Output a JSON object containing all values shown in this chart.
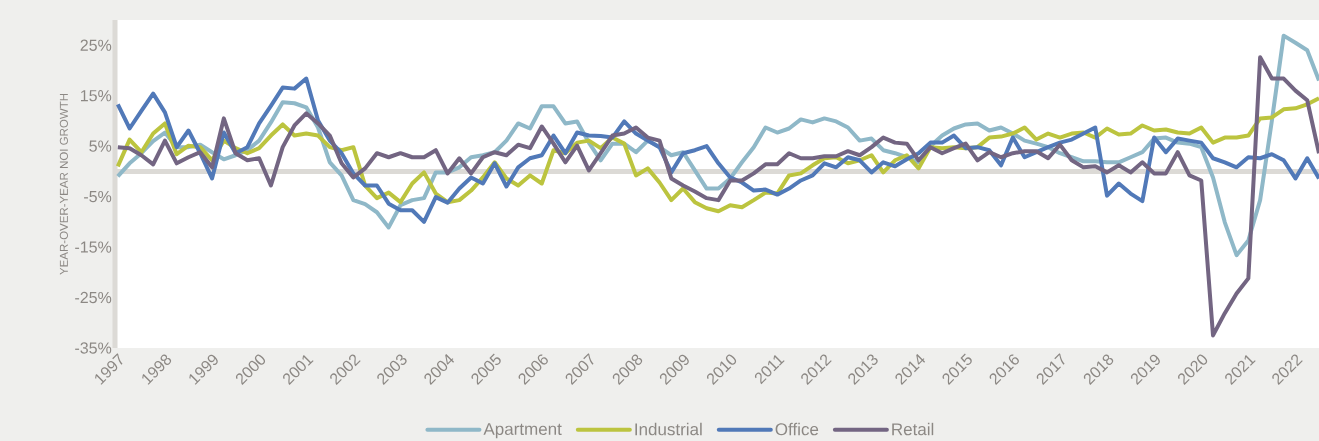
{
  "chart_data": {
    "type": "line",
    "ylabel": "YEAR-OVER-YEAR NOI GROWTH",
    "x": [
      1997,
      1997.25,
      1997.5,
      1997.75,
      1998,
      1998.25,
      1998.5,
      1998.75,
      1999,
      1999.25,
      1999.5,
      1999.75,
      2000,
      2000.25,
      2000.5,
      2000.75,
      2001,
      2001.25,
      2001.5,
      2001.75,
      2002,
      2002.25,
      2002.5,
      2002.75,
      2003,
      2003.25,
      2003.5,
      2003.75,
      2004,
      2004.25,
      2004.5,
      2004.75,
      2005,
      2005.25,
      2005.5,
      2005.75,
      2006,
      2006.25,
      2006.5,
      2006.75,
      2007,
      2007.25,
      2007.5,
      2007.75,
      2008,
      2008.25,
      2008.5,
      2008.75,
      2009,
      2009.25,
      2009.5,
      2009.75,
      2010,
      2010.25,
      2010.5,
      2010.75,
      2011,
      2011.25,
      2011.5,
      2011.75,
      2012,
      2012.25,
      2012.5,
      2012.75,
      2013,
      2013.25,
      2013.5,
      2013.75,
      2014,
      2014.25,
      2014.5,
      2014.75,
      2015,
      2015.25,
      2015.5,
      2015.75,
      2016,
      2016.25,
      2016.5,
      2016.75,
      2017,
      2017.25,
      2017.5,
      2017.75,
      2018,
      2018.25,
      2018.5,
      2018.75,
      2019,
      2019.25,
      2019.5,
      2019.75,
      2020,
      2020.25,
      2020.5,
      2020.75,
      2021,
      2021.25,
      2021.5,
      2021.75,
      2022,
      2022.25,
      2022.5
    ],
    "series": [
      {
        "name": "Apartment",
        "color": "#8fb8c8",
        "values": [
          -1.0,
          1.6,
          3.6,
          6.0,
          7.7,
          4.8,
          4.8,
          5.3,
          3.8,
          2.4,
          3.2,
          4.2,
          6.1,
          9.7,
          13.7,
          13.5,
          12.7,
          8.7,
          1.8,
          -0.8,
          -5.7,
          -6.5,
          -8.1,
          -11.1,
          -6.7,
          -5.7,
          -5.3,
          -0.2,
          -0.2,
          0.8,
          2.8,
          3.2,
          3.8,
          6.1,
          9.5,
          8.5,
          12.9,
          12.9,
          9.5,
          9.9,
          5.7,
          2.2,
          5.5,
          5.5,
          3.8,
          6.1,
          4.8,
          3.2,
          3.8,
          0.2,
          -3.4,
          -3.4,
          -1.4,
          1.8,
          4.8,
          8.7,
          7.7,
          8.5,
          10.3,
          9.7,
          10.5,
          9.9,
          8.7,
          6.1,
          6.5,
          4.2,
          3.6,
          2.8,
          1.8,
          5.0,
          7.1,
          8.5,
          9.3,
          9.5,
          8.1,
          8.7,
          7.5,
          6.1,
          5.5,
          4.8,
          3.6,
          2.8,
          2.0,
          2.0,
          1.8,
          1.8,
          2.8,
          3.8,
          6.5,
          6.7,
          5.7,
          5.5,
          4.8,
          -1.2,
          -10.1,
          -16.6,
          -13.7,
          -5.7,
          10.1,
          26.9,
          25.5,
          24.0,
          18.0
        ]
      },
      {
        "name": "Industrial",
        "color": "#bcc43f",
        "values": [
          1.0,
          6.3,
          3.8,
          7.5,
          9.5,
          3.4,
          5.1,
          4.8,
          2.2,
          6.1,
          4.6,
          3.6,
          4.6,
          7.1,
          9.3,
          7.1,
          7.5,
          7.1,
          4.8,
          4.2,
          4.8,
          -2.8,
          -5.3,
          -4.2,
          -6.1,
          -2.4,
          -0.2,
          -4.4,
          -6.1,
          -5.7,
          -3.8,
          -1.2,
          1.8,
          -1.4,
          -2.8,
          -0.8,
          -2.4,
          4.2,
          3.6,
          5.7,
          6.1,
          4.6,
          6.7,
          5.5,
          -0.8,
          0.6,
          -2.2,
          -5.7,
          -3.4,
          -6.1,
          -7.3,
          -7.9,
          -6.7,
          -7.1,
          -5.7,
          -4.2,
          -4.4,
          -0.8,
          -0.4,
          1.2,
          2.6,
          2.8,
          1.6,
          2.2,
          3.2,
          -0.2,
          2.2,
          3.2,
          0.6,
          4.8,
          4.6,
          4.8,
          4.6,
          4.8,
          6.7,
          6.9,
          7.5,
          8.7,
          6.3,
          7.5,
          6.7,
          7.5,
          7.7,
          6.7,
          8.5,
          7.3,
          7.5,
          9.1,
          8.1,
          8.3,
          7.7,
          7.5,
          8.7,
          5.7,
          6.7,
          6.7,
          7.1,
          10.5,
          10.7,
          12.3,
          12.5,
          13.3,
          14.5
        ]
      },
      {
        "name": "Office",
        "color": "#5179b8",
        "values": [
          13.3,
          8.5,
          12.0,
          15.4,
          11.7,
          4.8,
          8.1,
          3.6,
          -1.4,
          7.7,
          3.6,
          4.8,
          9.5,
          13.0,
          16.6,
          16.4,
          18.4,
          10.1,
          6.1,
          3.6,
          -0.4,
          -2.8,
          -2.8,
          -6.4,
          -7.7,
          -7.7,
          -10.0,
          -5.1,
          -6.2,
          -3.4,
          -1.2,
          -2.4,
          1.6,
          -3.0,
          0.8,
          2.6,
          3.2,
          7.1,
          3.6,
          7.7,
          7.1,
          7.0,
          6.7,
          9.9,
          7.5,
          6.1,
          4.8,
          -0.2,
          3.6,
          4.2,
          5.0,
          1.6,
          -1.2,
          -2.2,
          -3.8,
          -3.6,
          -4.6,
          -3.4,
          -1.8,
          -0.8,
          1.6,
          0.8,
          2.8,
          2.2,
          -0.2,
          1.8,
          1.0,
          2.4,
          3.6,
          5.7,
          5.7,
          7.1,
          4.6,
          4.8,
          4.2,
          1.2,
          6.7,
          2.8,
          3.8,
          4.8,
          5.7,
          6.3,
          7.5,
          8.7,
          -4.8,
          -2.4,
          -4.4,
          -5.9,
          6.7,
          3.8,
          6.5,
          6.1,
          5.7,
          2.6,
          1.8,
          0.8,
          2.8,
          2.6,
          3.4,
          2.2,
          -1.4,
          2.6,
          -1.4
        ]
      },
      {
        "name": "Retail",
        "color": "#736582",
        "values": [
          4.8,
          4.6,
          3.2,
          1.4,
          6.1,
          1.6,
          2.8,
          3.8,
          0.8,
          10.5,
          3.6,
          2.2,
          2.6,
          -2.8,
          4.8,
          9.1,
          11.5,
          9.5,
          7.1,
          1.6,
          -1.2,
          0.6,
          3.6,
          2.8,
          3.6,
          2.8,
          2.8,
          4.2,
          -0.4,
          2.6,
          -0.4,
          2.8,
          3.8,
          3.2,
          5.3,
          4.6,
          8.9,
          5.5,
          1.8,
          5.1,
          0.2,
          3.6,
          7.1,
          7.5,
          8.7,
          6.7,
          6.1,
          -1.4,
          -2.8,
          -4.0,
          -5.3,
          -5.7,
          -1.8,
          -1.8,
          -0.4,
          1.4,
          1.4,
          3.6,
          2.6,
          2.6,
          3.0,
          3.0,
          4.0,
          3.2,
          4.8,
          6.7,
          5.7,
          5.5,
          2.2,
          4.8,
          3.6,
          4.6,
          5.5,
          2.2,
          3.8,
          2.8,
          3.6,
          4.0,
          4.0,
          2.6,
          5.3,
          2.2,
          0.8,
          1.0,
          -0.2,
          1.2,
          -0.2,
          1.8,
          -0.4,
          -0.4,
          3.8,
          -0.8,
          -1.8,
          -32.5,
          -28.1,
          -24.2,
          -21.2,
          22.6,
          18.4,
          18.4,
          16.0,
          14.1,
          3.6
        ]
      }
    ],
    "xlim": [
      1996.94,
      2022.5
    ],
    "ylim": [
      -35,
      30
    ],
    "xticks": [
      1997,
      1998,
      1999,
      2000,
      2001,
      2002,
      2003,
      2004,
      2005,
      2006,
      2007,
      2008,
      2009,
      2010,
      2011,
      2012,
      2013,
      2014,
      2015,
      2016,
      2017,
      2018,
      2019,
      2020,
      2021,
      2022
    ],
    "yticks": [
      {
        "value": -35,
        "label": "-35%"
      },
      {
        "value": -25,
        "label": "-25%"
      },
      {
        "value": -15,
        "label": "-15%"
      },
      {
        "value": -5,
        "label": "-5%"
      },
      {
        "value": 5,
        "label": "5%"
      },
      {
        "value": 15,
        "label": "15%"
      },
      {
        "value": 25,
        "label": "25%"
      }
    ],
    "ref_lines": [
      {
        "axis": "y",
        "value": 0,
        "color": "#dcdad6"
      }
    ],
    "legend": "bottom",
    "marker": "none",
    "line_style": "solid"
  }
}
